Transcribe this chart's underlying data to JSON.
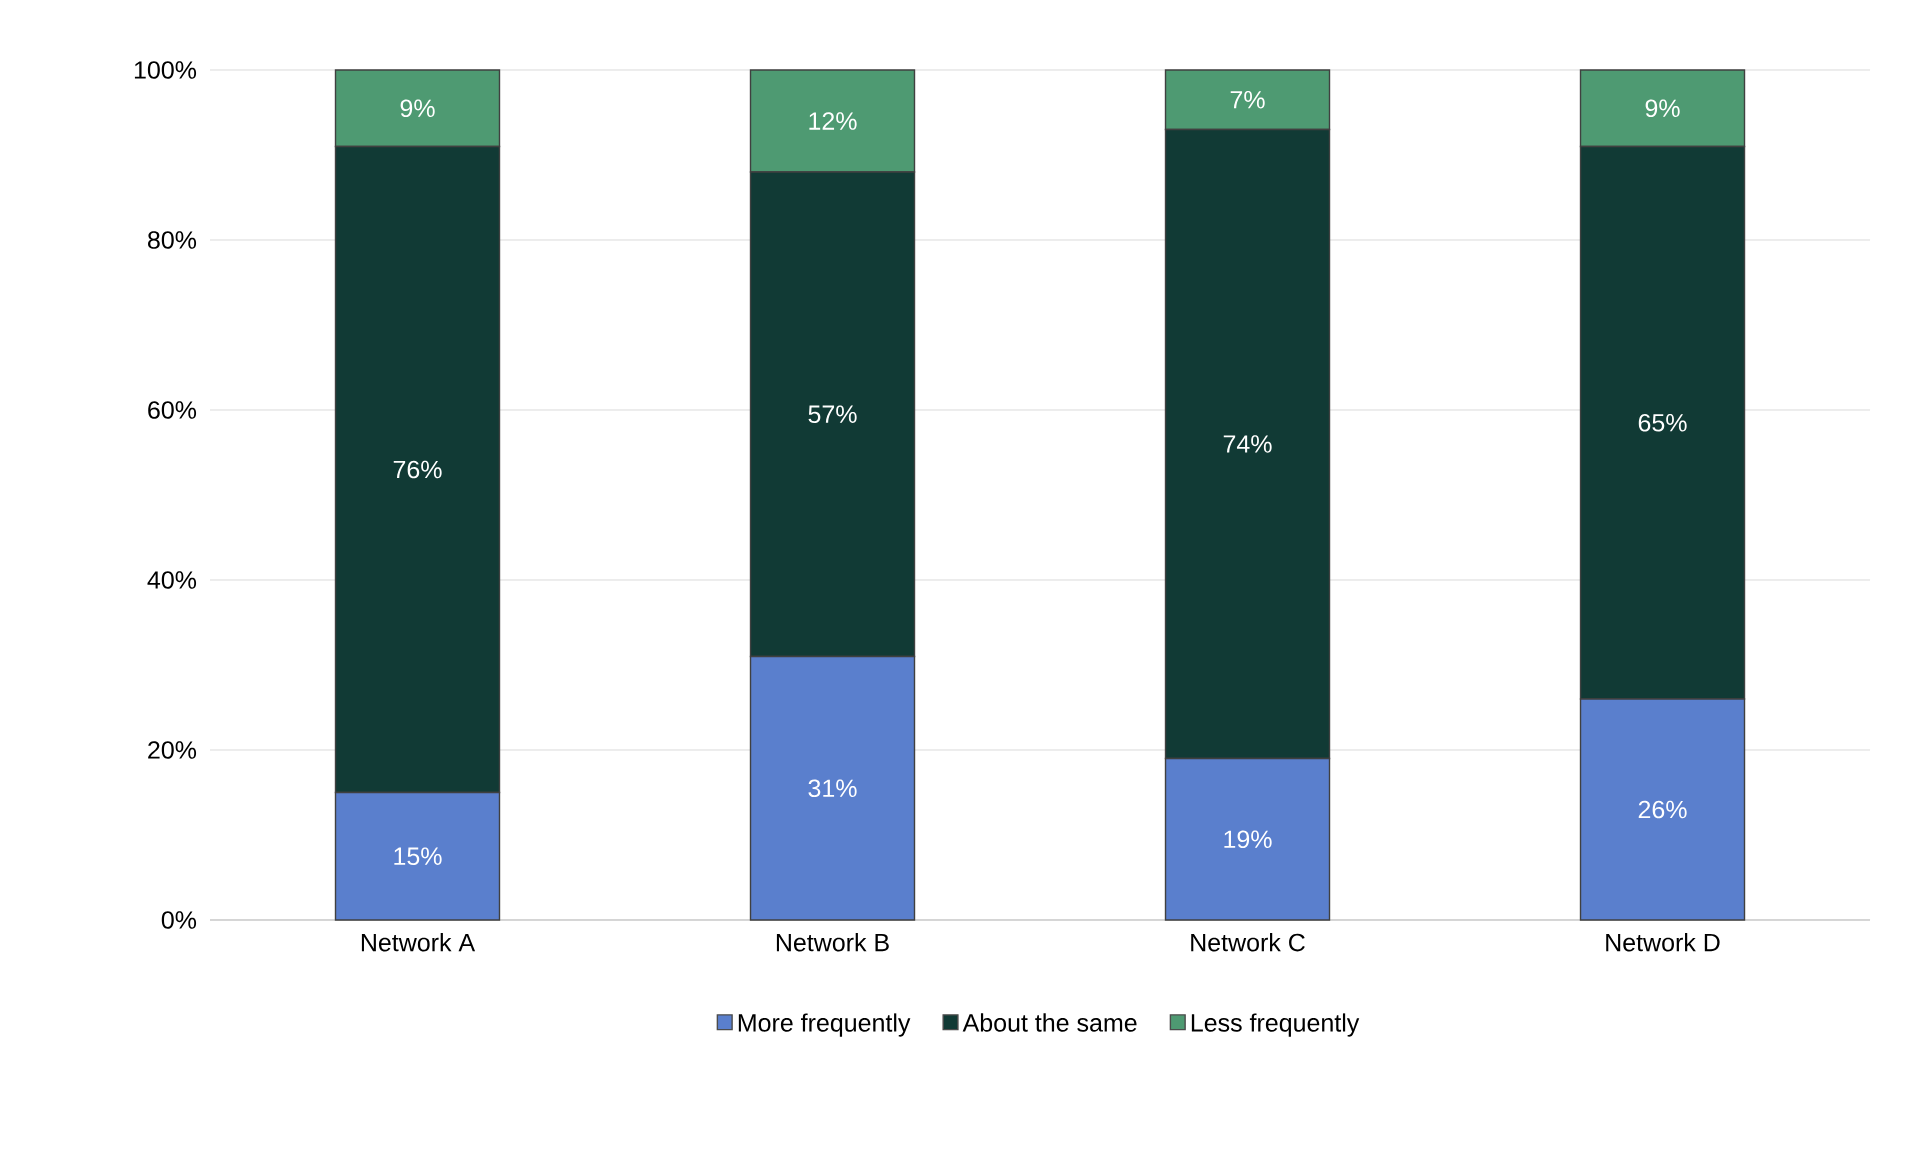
{
  "chart_data": {
    "type": "bar",
    "stacked": true,
    "categories": [
      "Network A",
      "Network B",
      "Network C",
      "Network D"
    ],
    "series": [
      {
        "name": "More frequently",
        "color": "#5a7fcd",
        "values": [
          15,
          31,
          19,
          26
        ],
        "value_labels": [
          "15%",
          "31%",
          "19%",
          "26%"
        ]
      },
      {
        "name": "About the same",
        "color": "#113a35",
        "values": [
          76,
          57,
          74,
          65
        ],
        "value_labels": [
          "76%",
          "57%",
          "74%",
          "65%"
        ]
      },
      {
        "name": "Less frequently",
        "color": "#4e9a72",
        "values": [
          9,
          12,
          7,
          9
        ],
        "value_labels": [
          "9%",
          "12%",
          "7%",
          "9%"
        ]
      }
    ],
    "ylim": [
      0,
      100
    ],
    "yticks": [
      {
        "value": 0,
        "label": "0%"
      },
      {
        "value": 20,
        "label": "20%"
      },
      {
        "value": 40,
        "label": "40%"
      },
      {
        "value": 60,
        "label": "60%"
      },
      {
        "value": 80,
        "label": "80%"
      },
      {
        "value": 100,
        "label": "100%"
      }
    ],
    "grid": "y",
    "legend": "bottom"
  }
}
